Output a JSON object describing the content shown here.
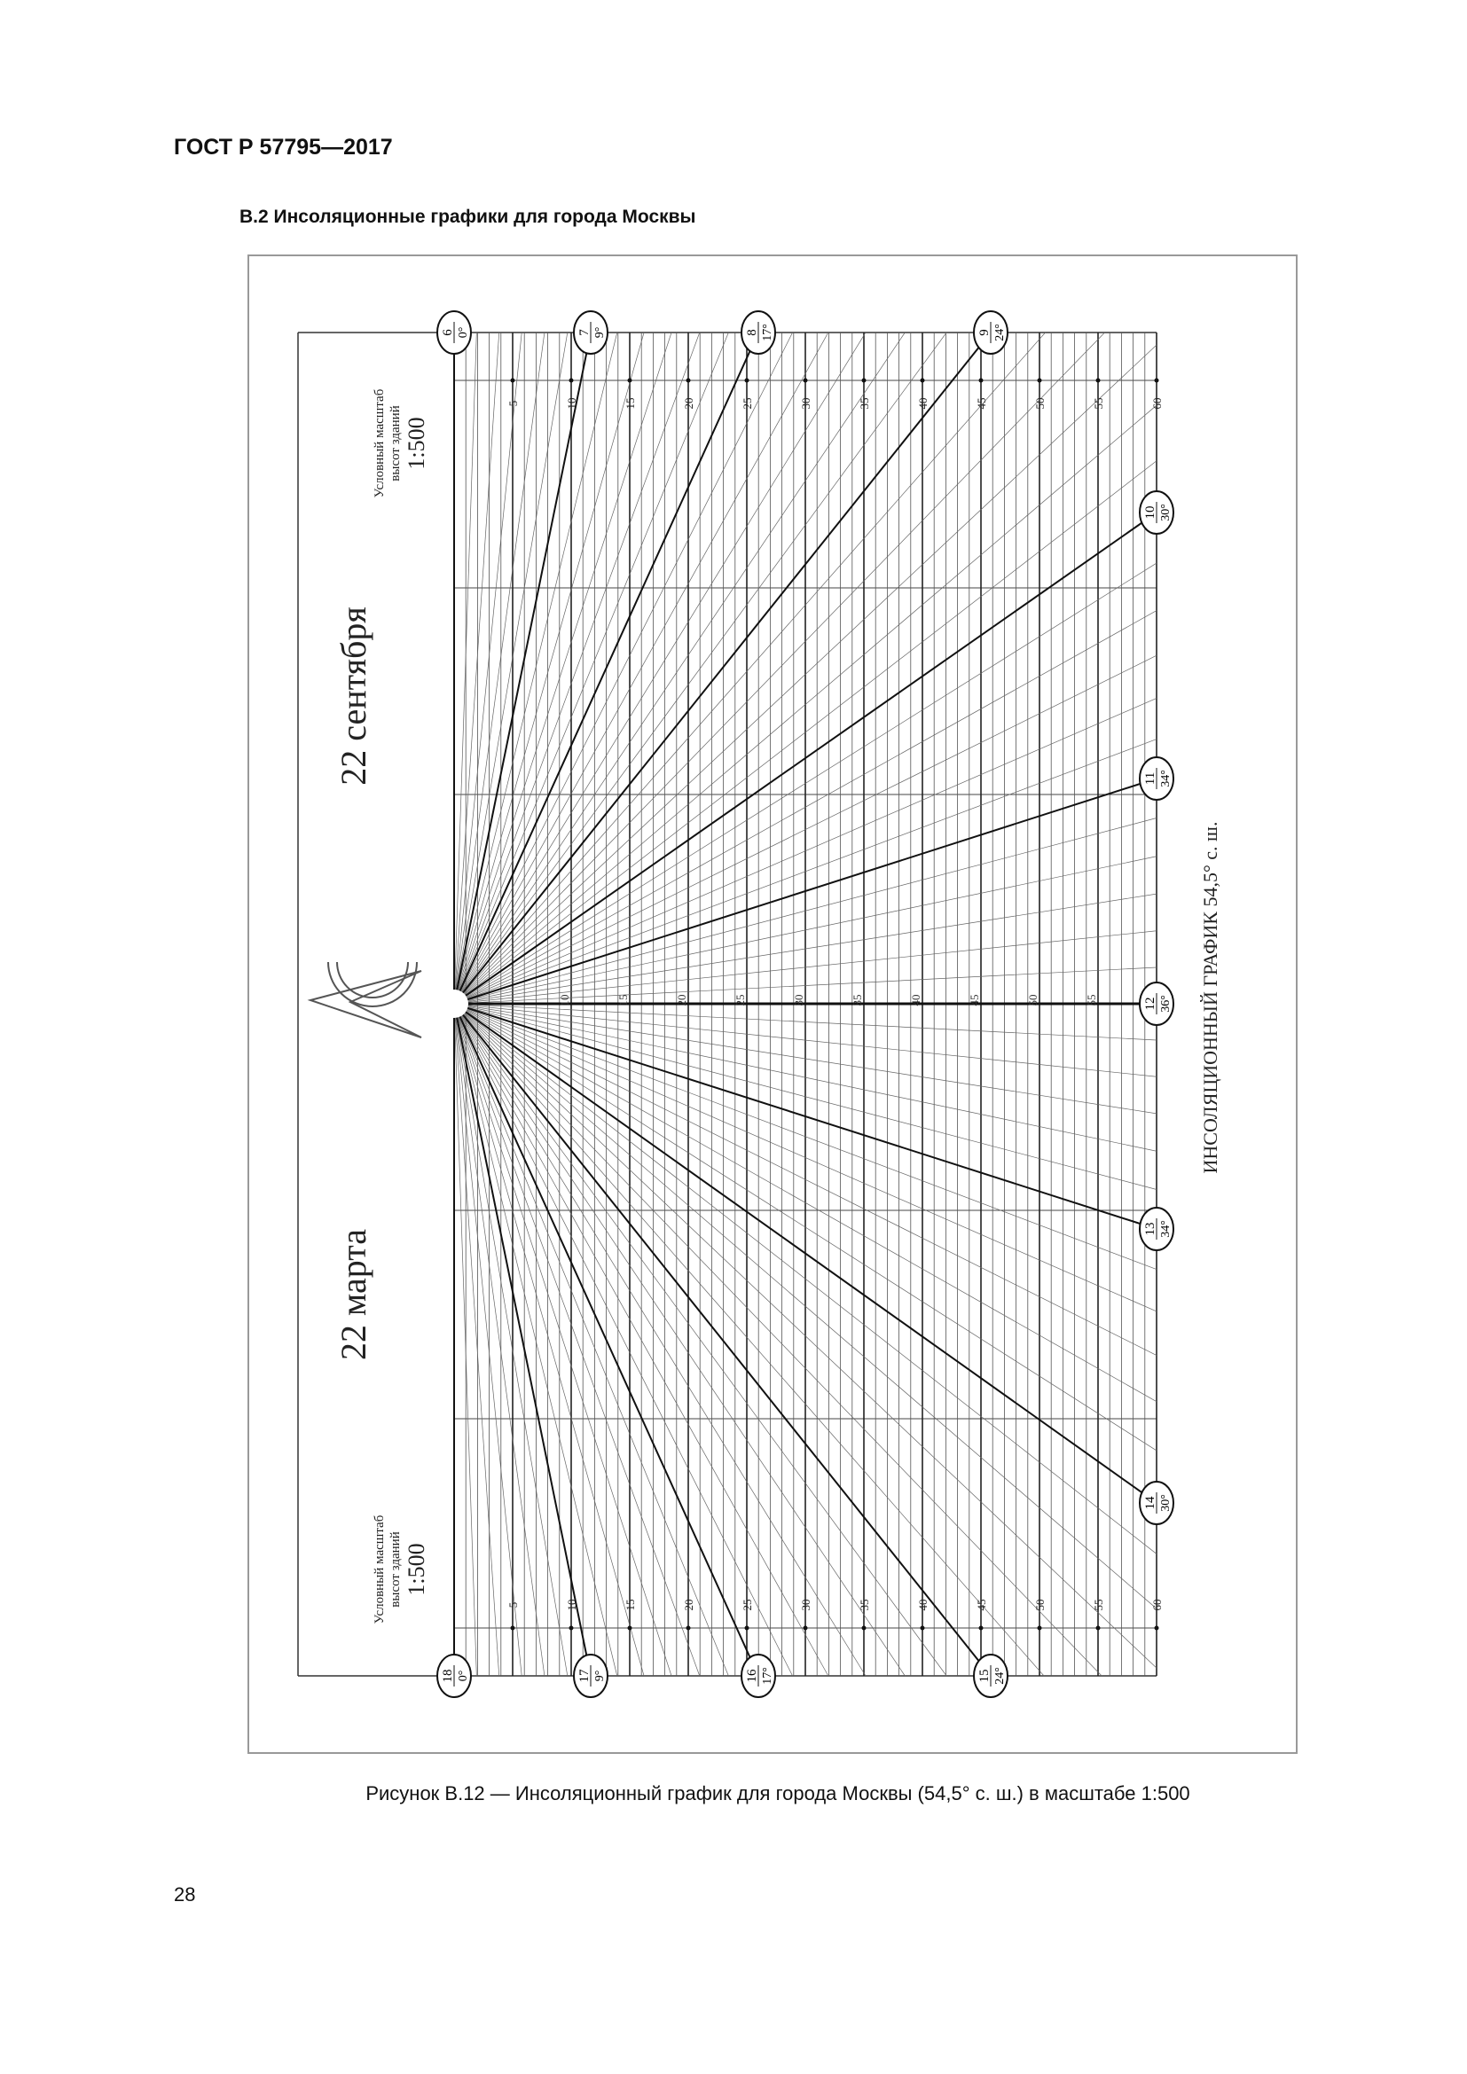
{
  "header": {
    "standard": "ГОСТ Р 57795—2017"
  },
  "section": {
    "title": "В.2 Инсоляционные графики для города Москвы"
  },
  "diagram": {
    "top_date": "22 сентября",
    "bottom_date": "22 марта",
    "scale_note_line1": "Условный масштаб",
    "scale_note_line2": "высот зданий",
    "scale_value": "1:500",
    "side_title": "ИНСОЛЯЦИОННЫЙ ГРАФИК 54,5° с. ш.",
    "height_marks": [
      "5",
      "10",
      "15",
      "20",
      "25",
      "30",
      "35",
      "40",
      "45",
      "50",
      "55",
      "60"
    ],
    "center_marks": [
      "10",
      "15",
      "20",
      "25",
      "30",
      "35",
      "40",
      "45",
      "50",
      "55"
    ],
    "hour_markers": [
      {
        "hour": "6",
        "azimuth": "0°"
      },
      {
        "hour": "7",
        "azimuth": "9°"
      },
      {
        "hour": "8",
        "azimuth": "17°"
      },
      {
        "hour": "9",
        "azimuth": "24°"
      },
      {
        "hour": "10",
        "azimuth": "30°"
      },
      {
        "hour": "11",
        "azimuth": "34°"
      },
      {
        "hour": "12",
        "azimuth": "36°"
      },
      {
        "hour": "13",
        "azimuth": "34°"
      },
      {
        "hour": "14",
        "azimuth": "30°"
      },
      {
        "hour": "15",
        "azimuth": "24°"
      },
      {
        "hour": "16",
        "azimuth": "17°"
      },
      {
        "hour": "17",
        "azimuth": "9°"
      },
      {
        "hour": "18",
        "azimuth": "0°"
      }
    ]
  },
  "caption": "Рисунок В.12 — Инсоляционный график для города Москвы (54,5° с. ш.) в масштабе 1:500",
  "page_number": "28"
}
